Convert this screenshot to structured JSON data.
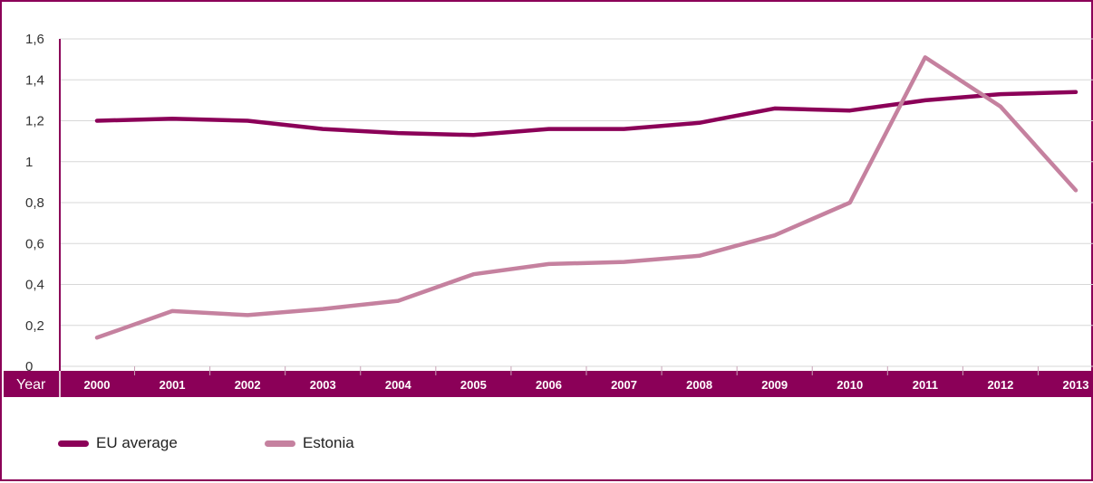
{
  "chart_data": {
    "type": "line",
    "title": "",
    "xlabel": "Year",
    "ylabel": "",
    "categories": [
      "2000",
      "2001",
      "2002",
      "2003",
      "2004",
      "2005",
      "2006",
      "2007",
      "2008",
      "2009",
      "2010",
      "2011",
      "2012",
      "2013"
    ],
    "y_ticks": [
      "0",
      "0,2",
      "0,4",
      "0,6",
      "0,8",
      "1",
      "1,2",
      "1,4",
      "1,6"
    ],
    "ylim": [
      0,
      1.6
    ],
    "grid": true,
    "legend_position": "bottom-left",
    "series": [
      {
        "name": "EU average",
        "color": "#8b0058",
        "values": [
          1.2,
          1.21,
          1.2,
          1.16,
          1.14,
          1.13,
          1.16,
          1.16,
          1.19,
          1.26,
          1.25,
          1.3,
          1.33,
          1.34
        ]
      },
      {
        "name": "Estonia",
        "color": "#c5819f",
        "values": [
          0.14,
          0.27,
          0.25,
          0.28,
          0.32,
          0.45,
          0.5,
          0.51,
          0.54,
          0.64,
          0.8,
          1.51,
          1.27,
          0.86
        ]
      }
    ]
  },
  "colors": {
    "axis_band": "#8b0058",
    "grid": "#d7d7d7",
    "tick_text": "#333333",
    "band_text": "#ffffff"
  }
}
